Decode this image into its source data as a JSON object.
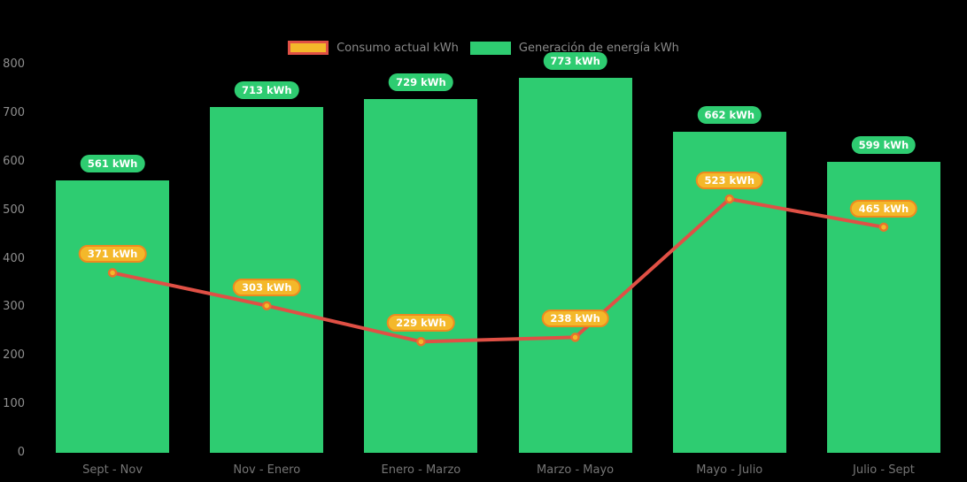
{
  "colors": {
    "background": "#000000",
    "bar_green": "#2ecc71",
    "badge_green_fill": "#2ecc71",
    "line_red": "#e05045",
    "point_fill": "#f4b82a",
    "point_border": "#e8732b",
    "badge_orange_fill": "#f4b82a",
    "badge_orange_border": "#ee8a1f",
    "badge_text": "#ffffff",
    "y_axis_text": "#8f8f8f",
    "x_axis_text": "#757575",
    "legend_text": "#8a8a8a"
  },
  "chart_data": {
    "type": "bar+line",
    "categories": [
      "Sept - Nov",
      "Nov - Enero",
      "Enero - Marzo",
      "Marzo - Mayo",
      "Mayo - Julio",
      "Julio - Sept"
    ],
    "series": [
      {
        "name": "Consumo actual kWh",
        "type": "line",
        "values": [
          371,
          303,
          229,
          238,
          523,
          465
        ]
      },
      {
        "name": "Generación de energía kWh",
        "type": "bar",
        "values": [
          561,
          713,
          729,
          773,
          662,
          599
        ]
      }
    ],
    "value_label_suffix": " kWh",
    "yticks": [
      0,
      100,
      200,
      300,
      400,
      500,
      600,
      700,
      800
    ],
    "ylim": [
      0,
      800
    ],
    "grid": false,
    "legend_position": "top-center"
  }
}
